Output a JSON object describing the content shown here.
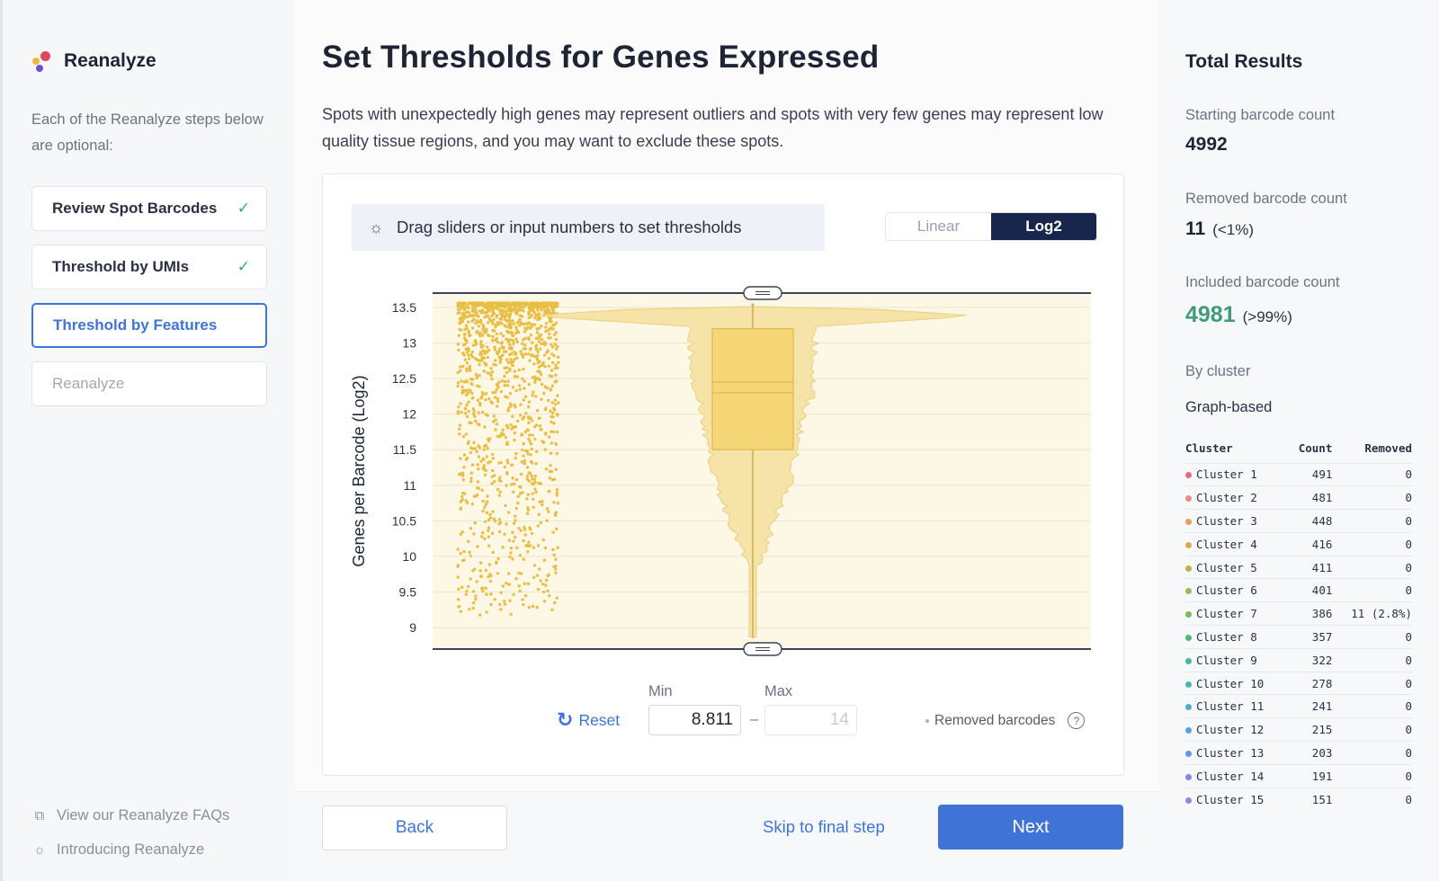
{
  "sidebar": {
    "brand": "Reanalyze",
    "description": "Each of the Reanalyze steps below are optional:",
    "steps": [
      {
        "label": "Review Spot Barcodes",
        "state": "done"
      },
      {
        "label": "Threshold by UMIs",
        "state": "done"
      },
      {
        "label": "Threshold by Features",
        "state": "active"
      },
      {
        "label": "Reanalyze",
        "state": "disabled"
      }
    ],
    "links": [
      {
        "label": "View our Reanalyze FAQs",
        "icon": "external-link-icon"
      },
      {
        "label": "Introducing Reanalyze",
        "icon": "lightbulb-icon"
      }
    ]
  },
  "main": {
    "title": "Set Thresholds for Genes Expressed",
    "description": "Spots with unexpectedly high genes may represent outliers and spots with very few genes may represent low quality tissue regions, and you may want to exclude these spots.",
    "hint": "Drag sliders or input numbers to set thresholds",
    "scale_toggle": {
      "options": [
        "Linear",
        "Log2"
      ],
      "selected": "Log2"
    },
    "controls": {
      "reset_label": "Reset",
      "min_label": "Min",
      "max_label": "Max",
      "min_value": "8.811",
      "max_value": "14",
      "dash": "–",
      "legend_label": "Removed barcodes",
      "help": "?"
    },
    "footer": {
      "back": "Back",
      "skip": "Skip to final step",
      "next": "Next"
    }
  },
  "chart_data": {
    "type": "scatter",
    "ylabel": "Genes per Barcode (Log2)",
    "yticks": [
      9,
      9.5,
      10,
      10.5,
      11,
      11.5,
      12,
      12.5,
      13,
      13.5
    ],
    "ylim": [
      8.7,
      13.7
    ],
    "thresholds": {
      "min": 8.811,
      "max": 14
    },
    "box": {
      "q1": 11.5,
      "median": 12.45,
      "mean": 12.3,
      "q3": 13.2
    },
    "color": "#e8bf45",
    "fill_color": "#f6e3a7"
  },
  "right": {
    "title": "Total Results",
    "starting": {
      "label": "Starting barcode count",
      "value": "4992"
    },
    "removed": {
      "label": "Removed barcode count",
      "value": "11",
      "pct": "(<1%)"
    },
    "included": {
      "label": "Included barcode count",
      "value": "4981",
      "pct": "(>99%)"
    },
    "by_cluster": "By cluster",
    "graph_based": "Graph-based",
    "table_headers": [
      "Cluster",
      "Count",
      "Removed"
    ],
    "clusters": [
      {
        "name": "Cluster 1",
        "count": "491",
        "removed": "0",
        "color": "#e36b83"
      },
      {
        "name": "Cluster 2",
        "count": "481",
        "removed": "0",
        "color": "#ea8a7d"
      },
      {
        "name": "Cluster 3",
        "count": "448",
        "removed": "0",
        "color": "#ec9d53"
      },
      {
        "name": "Cluster 4",
        "count": "416",
        "removed": "0",
        "color": "#dca84b"
      },
      {
        "name": "Cluster 5",
        "count": "411",
        "removed": "0",
        "color": "#b8b546"
      },
      {
        "name": "Cluster 6",
        "count": "401",
        "removed": "0",
        "color": "#9dba52"
      },
      {
        "name": "Cluster 7",
        "count": "386",
        "removed": "11 (2.8%)",
        "color": "#7fb65a"
      },
      {
        "name": "Cluster 8",
        "count": "357",
        "removed": "0",
        "color": "#58b37b"
      },
      {
        "name": "Cluster 9",
        "count": "322",
        "removed": "0",
        "color": "#4db59a"
      },
      {
        "name": "Cluster 10",
        "count": "278",
        "removed": "0",
        "color": "#4eb4b2"
      },
      {
        "name": "Cluster 11",
        "count": "241",
        "removed": "0",
        "color": "#4eaed0"
      },
      {
        "name": "Cluster 12",
        "count": "215",
        "removed": "0",
        "color": "#5aa3e0"
      },
      {
        "name": "Cluster 13",
        "count": "203",
        "removed": "0",
        "color": "#6b95e3"
      },
      {
        "name": "Cluster 14",
        "count": "191",
        "removed": "0",
        "color": "#8588e0"
      },
      {
        "name": "Cluster 15",
        "count": "151",
        "removed": "0",
        "color": "#a17fdc"
      }
    ]
  }
}
